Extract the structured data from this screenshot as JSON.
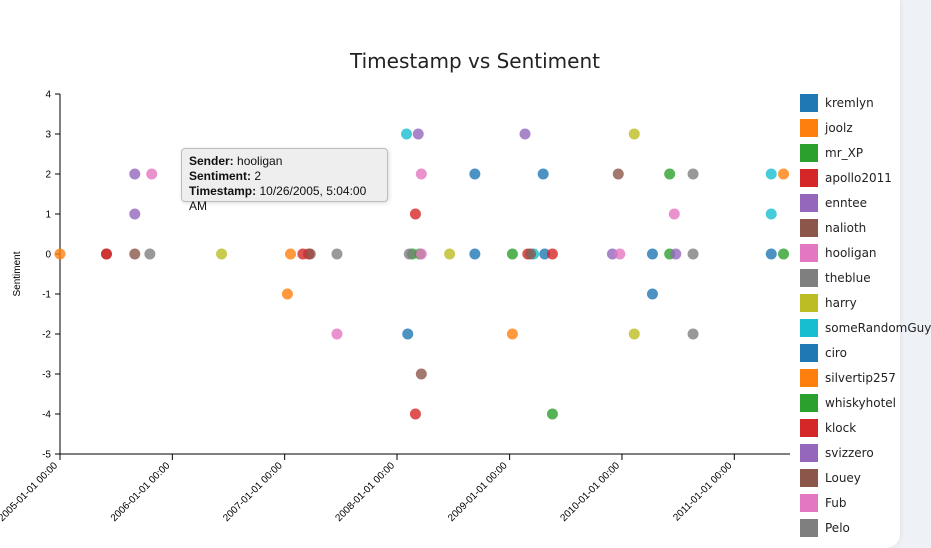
{
  "chart_data": {
    "type": "scatter",
    "title": "Timestamp vs Sentiment",
    "xlabel": "",
    "ylabel": "Sentiment",
    "xlim": [
      "2005-01-01",
      "2011-07-01"
    ],
    "ylim": [
      -5,
      4
    ],
    "x_ticks": [
      "2005-01-01 00:00",
      "2006-01-01 00:00",
      "2007-01-01 00:00",
      "2008-01-01 00:00",
      "2009-01-01 00:00",
      "2010-01-01 00:00",
      "2011-01-01 00:00"
    ],
    "y_ticks": [
      -5,
      -4,
      -3,
      -2,
      -1,
      0,
      1,
      2,
      3,
      4
    ],
    "grid": false,
    "legend_position": "right",
    "series": [
      {
        "name": "kremlyn",
        "color": "#1f77b4",
        "points": [
          [
            "2008-09-10",
            2
          ],
          [
            "2009-04-20",
            2
          ],
          [
            "2008-09-10",
            0
          ],
          [
            "2009-04-25",
            0
          ]
        ]
      },
      {
        "name": "joolz",
        "color": "#ff7f0e",
        "points": [
          [
            "2005-01-01",
            0
          ],
          [
            "2007-01-10",
            -1
          ],
          [
            "2011-06-10",
            2
          ],
          [
            "2009-01-10",
            -2
          ]
        ]
      },
      {
        "name": "mr_XP",
        "color": "#2ca02c",
        "points": [
          [
            "2009-01-10",
            0
          ],
          [
            "2009-05-20",
            -4
          ],
          [
            "2010-06-05",
            2
          ],
          [
            "2008-03-15",
            0
          ]
        ]
      },
      {
        "name": "apollo2011",
        "color": "#d62728",
        "points": [
          [
            "2008-03-01",
            1
          ],
          [
            "2008-03-01",
            -4
          ],
          [
            "2009-03-01",
            0
          ],
          [
            "2007-03-01",
            0
          ]
        ]
      },
      {
        "name": "enntee",
        "color": "#9467bd",
        "points": [
          [
            "2005-09-01",
            2
          ],
          [
            "2005-09-01",
            1
          ],
          [
            "2008-03-10",
            3
          ],
          [
            "2009-02-20",
            3
          ]
        ]
      },
      {
        "name": "nalioth",
        "color": "#8c564b",
        "points": [
          [
            "2005-06-01",
            0
          ],
          [
            "2005-09-01",
            0
          ],
          [
            "2008-03-20",
            -3
          ],
          [
            "2009-12-20",
            2
          ]
        ]
      },
      {
        "name": "hooligan",
        "color": "#e377c2",
        "points": [
          [
            "2005-10-26",
            2
          ],
          [
            "2008-03-20",
            2
          ],
          [
            "2007-06-20",
            -2
          ],
          [
            "2010-06-20",
            1
          ]
        ]
      },
      {
        "name": "theblue",
        "color": "#7f7f7f",
        "points": [
          [
            "2005-10-20",
            0
          ],
          [
            "2007-06-20",
            0
          ],
          [
            "2010-08-20",
            2
          ],
          [
            "2010-08-20",
            -2
          ]
        ]
      },
      {
        "name": "harry",
        "color": "#bcbd22",
        "points": [
          [
            "2010-02-10",
            3
          ],
          [
            "2010-02-10",
            -2
          ],
          [
            "2006-06-10",
            0
          ],
          [
            "2008-06-20",
            0
          ]
        ]
      },
      {
        "name": "someRandomGuy",
        "color": "#17becf",
        "points": [
          [
            "2008-02-01",
            3
          ],
          [
            "2011-05-01",
            2
          ],
          [
            "2011-05-01",
            1
          ],
          [
            "2009-03-20",
            0
          ]
        ]
      },
      {
        "name": "ciro",
        "color": "#1f77b4",
        "points": [
          [
            "2010-04-10",
            -1
          ],
          [
            "2008-02-05",
            -2
          ],
          [
            "2010-04-10",
            0
          ],
          [
            "2011-05-01",
            0
          ]
        ]
      },
      {
        "name": "silvertip257",
        "color": "#ff7f0e",
        "points": [
          [
            "2007-01-20",
            0
          ]
        ]
      },
      {
        "name": "whiskyhotel",
        "color": "#2ca02c",
        "points": [
          [
            "2011-06-10",
            0
          ],
          [
            "2010-06-05",
            0
          ],
          [
            "2008-02-20",
            0
          ]
        ]
      },
      {
        "name": "klock",
        "color": "#d62728",
        "points": [
          [
            "2005-06-01",
            0
          ],
          [
            "2007-03-20",
            0
          ],
          [
            "2009-05-20",
            0
          ]
        ]
      },
      {
        "name": "svizzero",
        "color": "#9467bd",
        "points": [
          [
            "2010-06-25",
            0
          ],
          [
            "2009-12-01",
            0
          ]
        ]
      },
      {
        "name": "Louey",
        "color": "#8c564b",
        "points": [
          [
            "2007-03-25",
            0
          ],
          [
            "2009-03-10",
            0
          ]
        ]
      },
      {
        "name": "Fub",
        "color": "#e377c2",
        "points": [
          [
            "2008-03-20",
            0
          ],
          [
            "2009-12-25",
            0
          ]
        ]
      },
      {
        "name": "Pelo",
        "color": "#7f7f7f",
        "points": [
          [
            "2008-02-10",
            0
          ],
          [
            "2010-08-20",
            0
          ]
        ]
      }
    ],
    "tooltip": {
      "sender_label": "Sender:",
      "sender": "hooligan",
      "sentiment_label": "Sentiment:",
      "sentiment": "2",
      "timestamp_label": "Timestamp:",
      "timestamp": "10/26/2005, 5:04:00 AM"
    }
  }
}
